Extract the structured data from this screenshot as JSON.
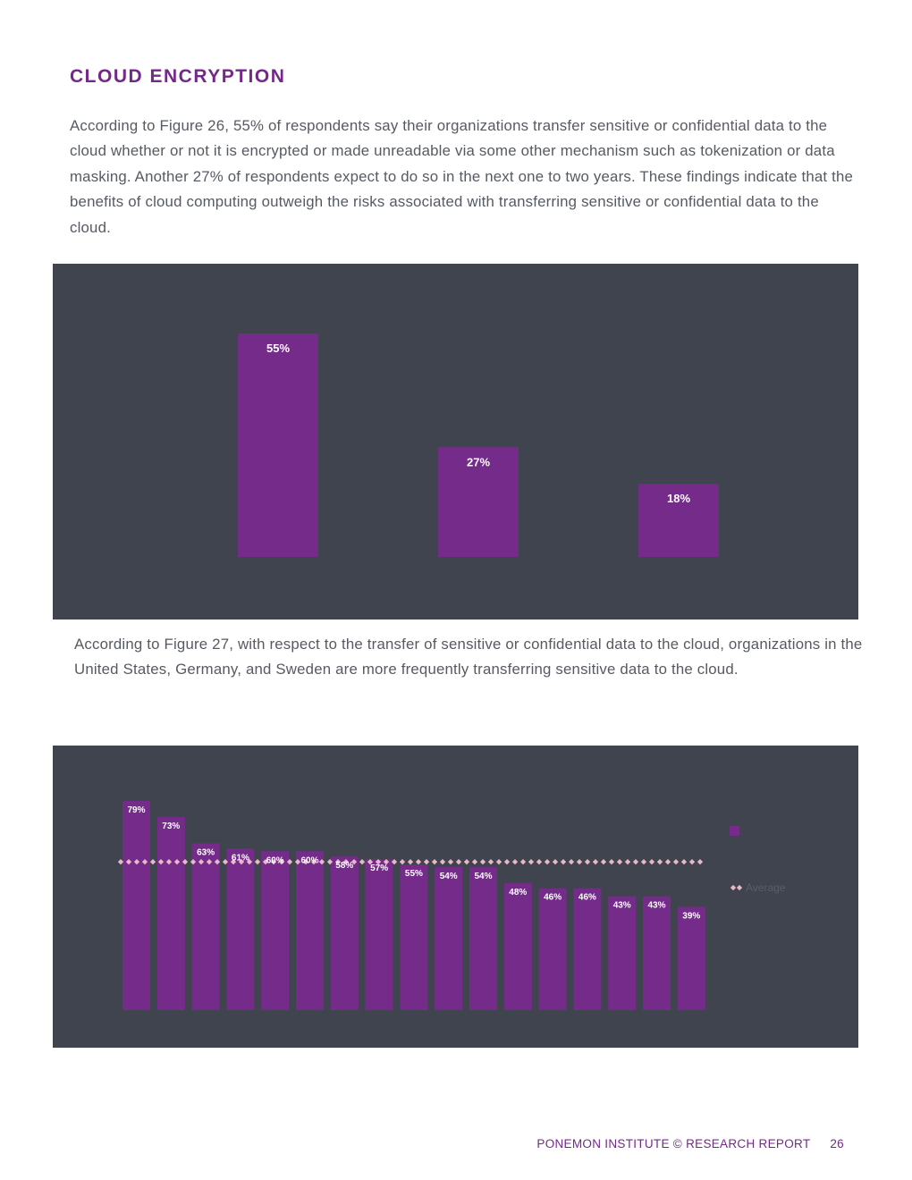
{
  "page": {
    "heading": "CLOUD ENCRYPTION",
    "paragraph1": "According to Figure 26, 55% of respondents say their organizations transfer sensitive or confidential data to the cloud whether or not it is encrypted or made unreadable via some other mechanism such as tokenization or data masking. Another 27% of respondents expect to do so in the next one to two years. These findings indicate that the benefits of cloud computing outweigh the risks associated with transferring sensitive or confidential data to the cloud.",
    "paragraph2": "According to Figure 27, with respect to the transfer of sensitive or confidential data to the cloud, organizations in the United States, Germany, and Sweden are more frequently transferring sensitive data to the cloud."
  },
  "footer": {
    "report_label": "PONEMON INSTITUTE © RESEARCH REPORT",
    "page_number": "26"
  },
  "colors": {
    "accent": "#74288a",
    "panel": "#40444f",
    "bar": "#752b8a",
    "average": "#e8b7c8",
    "body_text": "#555a63"
  },
  "chart_data": [
    {
      "type": "bar",
      "categories": [
        "",
        "",
        ""
      ],
      "values": [
        55,
        27,
        18
      ],
      "value_labels": [
        "55%",
        "27%",
        "18%"
      ],
      "ylim": [
        0,
        60
      ],
      "grid": false
    },
    {
      "type": "bar",
      "categories": [
        "",
        "",
        "",
        "",
        "",
        "",
        "",
        "",
        "",
        "",
        "",
        "",
        "",
        "",
        "",
        "",
        ""
      ],
      "values": [
        79,
        73,
        63,
        61,
        60,
        60,
        58,
        57,
        55,
        54,
        54,
        48,
        46,
        46,
        43,
        43,
        39
      ],
      "value_labels": [
        "79%",
        "73%",
        "63%",
        "61%",
        "60%",
        "60%",
        "58%",
        "57%",
        "55%",
        "54%",
        "54%",
        "48%",
        "46%",
        "46%",
        "43%",
        "43%",
        "39%"
      ],
      "average": 56,
      "ylim": [
        0,
        85
      ],
      "legend": {
        "placement": "right",
        "average_label": "Average"
      },
      "grid": false
    }
  ]
}
